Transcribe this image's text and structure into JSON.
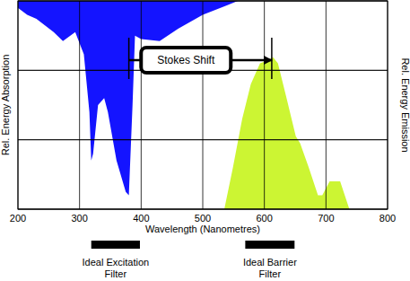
{
  "chart_data": {
    "type": "area",
    "x_label": "Wavelength (Nanometres)",
    "y_label": "Rel. Energy Absorption",
    "y2_label": "Rel. Energy Emission",
    "xlim": [
      200,
      800
    ],
    "xticks": [
      200,
      300,
      400,
      500,
      600,
      700,
      800
    ],
    "ylim": [
      3,
      0
    ],
    "yticks": [
      3,
      2,
      1,
      0
    ],
    "y2lim": [
      0,
      3
    ],
    "y2ticks": [
      0,
      1,
      2,
      3
    ],
    "grid": true,
    "tick_labels": "x",
    "series": [
      {
        "color": "#1414ff",
        "x": [
          200,
          215,
          230,
          258,
          273,
          293,
          307,
          316,
          319,
          322,
          330,
          340,
          346,
          360,
          375,
          380,
          386,
          390,
          400,
          430,
          460,
          500,
          540,
          557
        ],
        "values": [
          0.1,
          0.2,
          0.26,
          0.45,
          0.58,
          0.45,
          0.77,
          1.6,
          2.3,
          2.2,
          1.5,
          1.4,
          1.6,
          2.3,
          2.75,
          2.8,
          1.5,
          0.5,
          0.55,
          0.58,
          0.4,
          0.2,
          0.06,
          0
        ]
      },
      {
        "color": "#ccf533",
        "axis": "y2",
        "x": [
          535,
          549,
          564,
          578,
          593,
          607,
          614,
          622,
          636,
          651,
          658,
          672,
          687,
          694,
          706,
          723,
          738
        ],
        "values": [
          0,
          0.6,
          1.3,
          1.8,
          2.1,
          2.15,
          2.19,
          2.1,
          1.6,
          1.05,
          0.95,
          0.6,
          0.2,
          0.2,
          0.4,
          0.4,
          0
        ]
      }
    ],
    "annotations": [
      {
        "text": "Stokes Shift",
        "x_start": 380,
        "x_end": 612
      }
    ],
    "filters": [
      {
        "label": [
          "Ideal Excitation",
          "Filter"
        ],
        "x_start": 319,
        "x_end": 398
      },
      {
        "label": [
          "Ideal Barrier",
          "Filter"
        ],
        "x_start": 569,
        "x_end": 649
      }
    ]
  }
}
